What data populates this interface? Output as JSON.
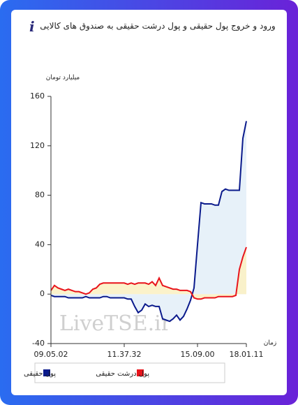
{
  "chart_data": {
    "type": "line",
    "title": "ورود و خروج پول حقیقی و پول درشت حقیقی به صندوق های کالایی",
    "y_label": "میلیارد تومان",
    "x_label": "زمان",
    "watermark": "LiveTSE.ir",
    "categories": [
      "09.05.02",
      null,
      null,
      null,
      null,
      null,
      null,
      null,
      null,
      null,
      null,
      null,
      null,
      null,
      null,
      null,
      null,
      null,
      null,
      null,
      null,
      "11.37.32",
      null,
      null,
      null,
      null,
      null,
      null,
      null,
      null,
      null,
      null,
      null,
      null,
      null,
      null,
      null,
      null,
      null,
      null,
      null,
      null,
      "15.09.00",
      null,
      null,
      null,
      null,
      null,
      null,
      null,
      null,
      null,
      null,
      null,
      null,
      null,
      "18.01.11"
    ],
    "series": [
      {
        "name": "پول حقیقی",
        "color": "#0a1a8c",
        "fill": "#e4f0f8",
        "values": [
          -1,
          -2,
          -2,
          -2,
          -2,
          -3,
          -3,
          -3,
          -3,
          -3,
          -2,
          -3,
          -3,
          -3,
          -3,
          -2,
          -2,
          -3,
          -3,
          -3,
          -3,
          -3,
          -4,
          -4,
          -10,
          -15,
          -13,
          -8,
          -10,
          -9,
          -10,
          -10,
          -20,
          -21,
          -22,
          -20,
          -17,
          -21,
          -18,
          -12,
          -5,
          5,
          40,
          74,
          73,
          73,
          73,
          72,
          72,
          83,
          85,
          84,
          84,
          84,
          84,
          126,
          140
        ]
      },
      {
        "name": "پول درشت حقیقی",
        "color": "#e8141b",
        "fill": "#fbf1c4",
        "values": [
          3,
          7,
          5,
          4,
          3,
          4,
          3,
          2,
          2,
          1,
          0,
          1,
          4,
          5,
          8,
          9,
          9,
          9,
          9,
          9,
          9,
          9,
          8,
          9,
          8,
          9,
          9,
          9,
          8,
          10,
          7,
          13,
          7,
          6,
          5,
          4,
          4,
          3,
          3,
          3,
          2,
          -3,
          -4,
          -4,
          -3,
          -3,
          -3,
          -3,
          -2,
          -2,
          -2,
          -2,
          -2,
          -1,
          20,
          30,
          38
        ]
      }
    ],
    "ylim": [
      -40,
      160
    ],
    "yticks": [
      -40,
      0,
      40,
      80,
      120,
      160
    ]
  }
}
